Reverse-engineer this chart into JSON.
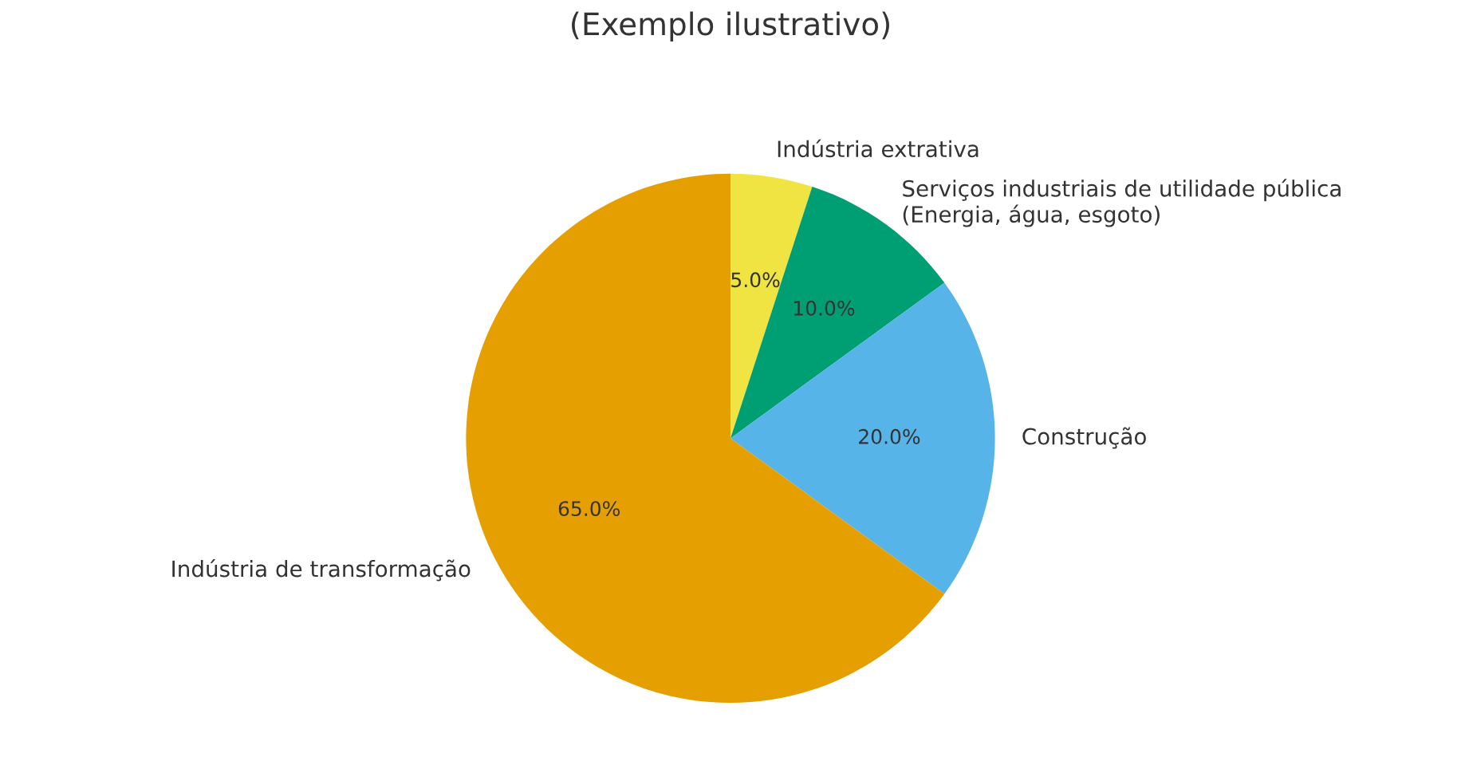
{
  "chart_data": {
    "type": "pie",
    "title": "(Exemplo ilustrativo)",
    "categories": [
      "Indústria extrativa",
      "Serviços industriais de utilidade pública\n(Energia, água, esgoto)",
      "Construção",
      "Indústria de transformação"
    ],
    "values": [
      5.0,
      10.0,
      20.0,
      65.0
    ],
    "colors": [
      "#f0e442",
      "#009e73",
      "#56b4e9",
      "#e69f00"
    ],
    "value_labels": [
      "5.0%",
      "10.0%",
      "20.0%",
      "65.0%"
    ],
    "legend": false
  }
}
